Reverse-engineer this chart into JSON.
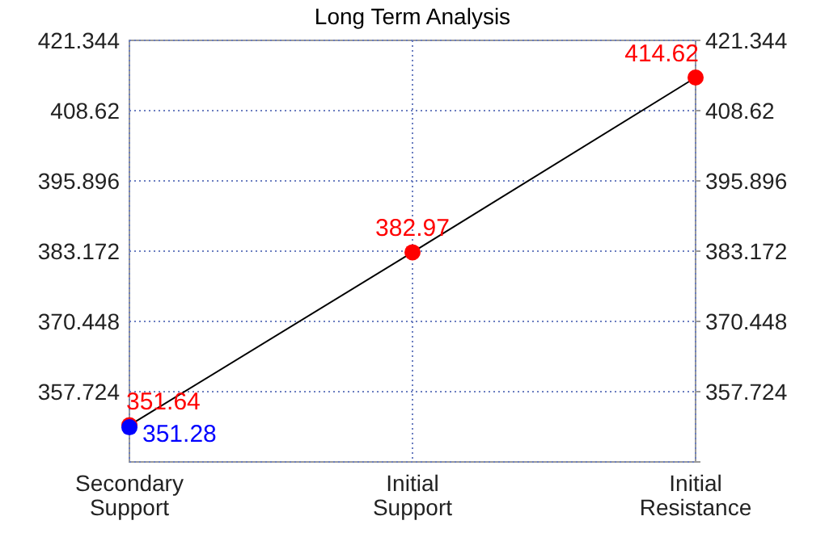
{
  "chart_data": {
    "type": "line",
    "title": "Long Term Analysis",
    "categories": [
      "Secondary\nSupport",
      "Initial\nSupport",
      "Initial\nResistance"
    ],
    "series": [
      {
        "type": "line",
        "color": "#000000",
        "values": [
          351.64,
          382.97,
          414.62
        ],
        "marker": "none"
      },
      {
        "type": "scatter",
        "color": "#ff0000",
        "values": [
          351.64,
          382.97,
          414.62
        ],
        "marker": "circle",
        "value_labels": [
          "351.64",
          "382.97",
          "414.62"
        ]
      },
      {
        "type": "scatter",
        "color": "#0000ff",
        "values": [
          351.28,
          null,
          null
        ],
        "marker": "circle",
        "value_labels": [
          "351.28",
          null,
          null
        ]
      }
    ],
    "ylim": [
      345,
      421.344
    ],
    "yticks": [
      {
        "value": 345,
        "label": null
      },
      357.724,
      370.448,
      383.172,
      395.896,
      408.62,
      421.344
    ],
    "y2lim": [
      345,
      421.344
    ],
    "y2ticks": [
      {
        "value": 345,
        "label": null
      },
      357.724,
      370.448,
      383.172,
      395.896,
      408.62,
      421.344
    ],
    "grid": true
  }
}
